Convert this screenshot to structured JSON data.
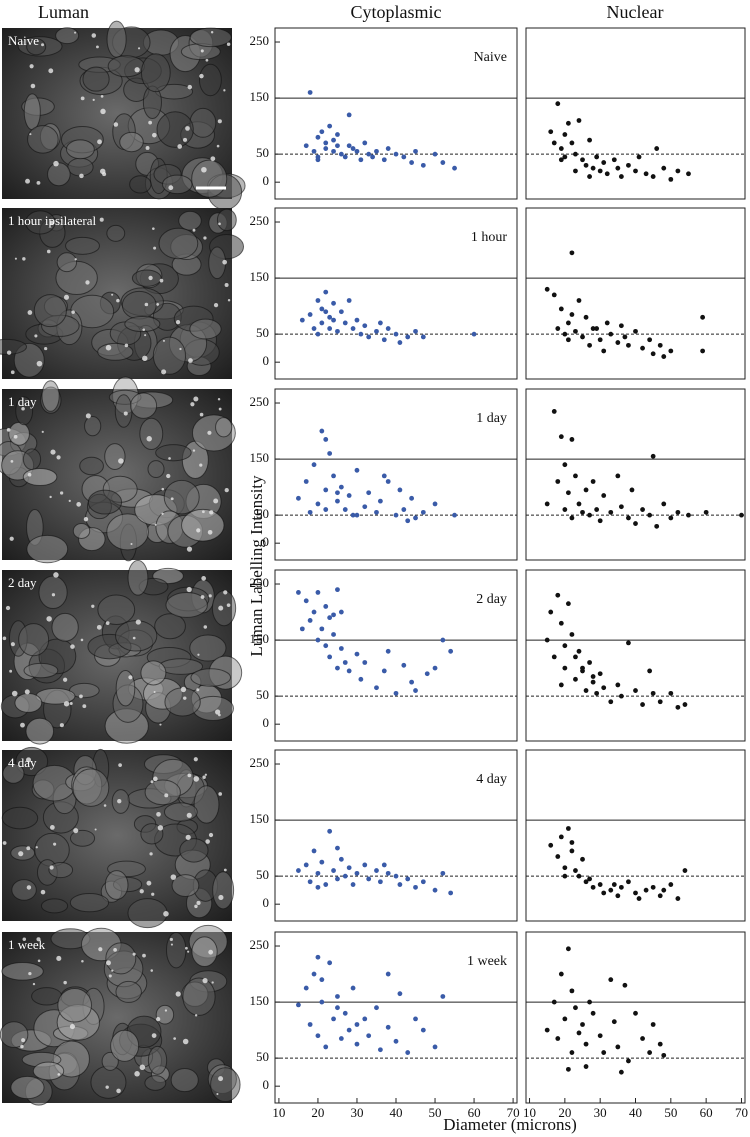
{
  "column_titles": [
    "Luman",
    "Cytoplasmic",
    "Nuclear"
  ],
  "image_labels": [
    "Naive",
    "1 hour ipsilateral",
    "1 day",
    "2 day",
    "4 day",
    "1 week"
  ],
  "y_label": "Luman Labelling Intensity",
  "x_label": "Diameter (microns)",
  "chart_data": [
    {
      "type": "scatter",
      "annotation": "Naive",
      "color": "#3a5ba8",
      "xlim": [
        9,
        71
      ],
      "ylim": [
        -30,
        275
      ],
      "yticks": [
        0,
        50,
        150,
        250
      ],
      "reference_lines": [
        {
          "value": 150,
          "style": "solid"
        },
        {
          "value": 50,
          "style": "dashed"
        }
      ],
      "x": [
        17,
        18,
        19,
        20,
        20,
        21,
        22,
        22,
        23,
        24,
        25,
        25,
        26,
        27,
        28,
        29,
        30,
        31,
        32,
        33,
        34,
        35,
        37,
        38,
        40,
        42,
        44,
        45,
        47,
        50,
        52,
        55,
        20,
        24,
        28
      ],
      "values": [
        65,
        160,
        55,
        80,
        45,
        90,
        60,
        70,
        100,
        55,
        65,
        85,
        50,
        45,
        120,
        60,
        55,
        40,
        70,
        50,
        45,
        55,
        40,
        60,
        50,
        45,
        35,
        55,
        30,
        50,
        35,
        25,
        40,
        75,
        65
      ]
    },
    {
      "type": "scatter",
      "color": "#111111",
      "xlim": [
        9,
        71
      ],
      "ylim": [
        -30,
        275
      ],
      "reference_lines": [
        {
          "value": 150,
          "style": "solid"
        },
        {
          "value": 50,
          "style": "dashed"
        }
      ],
      "x": [
        16,
        17,
        18,
        19,
        20,
        20,
        21,
        22,
        23,
        24,
        25,
        26,
        27,
        28,
        29,
        30,
        31,
        32,
        34,
        35,
        36,
        38,
        40,
        41,
        43,
        45,
        46,
        48,
        50,
        52,
        55,
        19,
        23,
        27
      ],
      "values": [
        90,
        70,
        140,
        60,
        85,
        45,
        105,
        70,
        50,
        110,
        40,
        30,
        75,
        25,
        45,
        20,
        35,
        15,
        40,
        25,
        10,
        30,
        20,
        45,
        15,
        10,
        60,
        25,
        5,
        20,
        15,
        40,
        20,
        10
      ]
    },
    {
      "type": "scatter",
      "annotation": "1 hour",
      "color": "#3a5ba8",
      "xlim": [
        9,
        71
      ],
      "ylim": [
        -30,
        275
      ],
      "yticks": [
        0,
        50,
        150,
        250
      ],
      "reference_lines": [
        {
          "value": 150,
          "style": "solid"
        },
        {
          "value": 50,
          "style": "dashed"
        }
      ],
      "x": [
        16,
        18,
        19,
        20,
        21,
        21,
        22,
        23,
        23,
        24,
        25,
        26,
        27,
        28,
        29,
        30,
        31,
        32,
        33,
        35,
        36,
        37,
        38,
        40,
        41,
        43,
        45,
        47,
        20,
        24,
        60,
        22
      ],
      "values": [
        75,
        85,
        60,
        110,
        95,
        70,
        125,
        80,
        60,
        105,
        55,
        90,
        70,
        110,
        60,
        75,
        50,
        65,
        45,
        55,
        70,
        40,
        60,
        50,
        35,
        45,
        55,
        45,
        50,
        75,
        50,
        90
      ]
    },
    {
      "type": "scatter",
      "color": "#111111",
      "xlim": [
        9,
        71
      ],
      "ylim": [
        -30,
        275
      ],
      "reference_lines": [
        {
          "value": 150,
          "style": "solid"
        },
        {
          "value": 50,
          "style": "dashed"
        }
      ],
      "x": [
        15,
        17,
        18,
        19,
        20,
        21,
        21,
        22,
        23,
        24,
        25,
        26,
        27,
        28,
        30,
        31,
        32,
        33,
        35,
        36,
        38,
        40,
        42,
        44,
        45,
        47,
        48,
        50,
        59,
        59,
        22,
        29,
        37
      ],
      "values": [
        130,
        120,
        60,
        95,
        50,
        70,
        40,
        195,
        55,
        110,
        45,
        80,
        30,
        60,
        40,
        20,
        70,
        50,
        35,
        65,
        30,
        55,
        25,
        40,
        15,
        30,
        10,
        20,
        80,
        20,
        85,
        60,
        45
      ]
    },
    {
      "type": "scatter",
      "annotation": "1 day",
      "color": "#3a5ba8",
      "xlim": [
        9,
        71
      ],
      "ylim": [
        -30,
        275
      ],
      "yticks": [
        0,
        50,
        150,
        250
      ],
      "reference_lines": [
        {
          "value": 150,
          "style": "solid"
        },
        {
          "value": 50,
          "style": "dashed"
        }
      ],
      "x": [
        15,
        17,
        18,
        19,
        20,
        21,
        22,
        22,
        23,
        24,
        25,
        26,
        27,
        28,
        29,
        30,
        32,
        33,
        35,
        36,
        38,
        40,
        41,
        42,
        44,
        45,
        47,
        50,
        55,
        22,
        25,
        30,
        37,
        43
      ],
      "values": [
        80,
        110,
        55,
        140,
        70,
        200,
        95,
        60,
        160,
        120,
        75,
        100,
        60,
        85,
        50,
        130,
        65,
        90,
        55,
        75,
        110,
        50,
        95,
        60,
        80,
        45,
        55,
        70,
        50,
        185,
        90,
        50,
        120,
        40
      ]
    },
    {
      "type": "scatter",
      "color": "#111111",
      "xlim": [
        9,
        71
      ],
      "ylim": [
        -30,
        275
      ],
      "reference_lines": [
        {
          "value": 150,
          "style": "solid"
        },
        {
          "value": 50,
          "style": "dashed"
        }
      ],
      "x": [
        15,
        17,
        18,
        19,
        20,
        20,
        21,
        22,
        23,
        24,
        25,
        26,
        27,
        28,
        29,
        30,
        31,
        33,
        35,
        36,
        38,
        39,
        40,
        42,
        44,
        45,
        46,
        48,
        50,
        52,
        55,
        60,
        70,
        22
      ],
      "values": [
        70,
        235,
        110,
        190,
        60,
        140,
        90,
        45,
        120,
        70,
        55,
        95,
        50,
        110,
        60,
        40,
        85,
        55,
        120,
        65,
        45,
        95,
        35,
        60,
        50,
        155,
        30,
        70,
        45,
        55,
        50,
        55,
        50,
        185
      ]
    },
    {
      "type": "scatter",
      "annotation": "2 day",
      "color": "#3a5ba8",
      "xlim": [
        9,
        71
      ],
      "ylim": [
        -30,
        275
      ],
      "yticks": [
        0,
        50,
        150,
        250
      ],
      "reference_lines": [
        {
          "value": 150,
          "style": "solid"
        },
        {
          "value": 50,
          "style": "dashed"
        }
      ],
      "x": [
        15,
        16,
        17,
        18,
        19,
        20,
        20,
        21,
        22,
        22,
        23,
        23,
        24,
        25,
        25,
        26,
        27,
        28,
        30,
        31,
        32,
        35,
        37,
        38,
        40,
        42,
        44,
        45,
        48,
        50,
        52,
        54,
        24,
        26
      ],
      "values": [
        235,
        170,
        220,
        185,
        200,
        150,
        235,
        170,
        210,
        140,
        190,
        120,
        160,
        100,
        240,
        135,
        110,
        95,
        125,
        80,
        110,
        65,
        95,
        130,
        55,
        105,
        75,
        60,
        90,
        100,
        150,
        130,
        195,
        200
      ]
    },
    {
      "type": "scatter",
      "color": "#111111",
      "xlim": [
        9,
        71
      ],
      "ylim": [
        -30,
        275
      ],
      "reference_lines": [
        {
          "value": 150,
          "style": "solid"
        },
        {
          "value": 50,
          "style": "dashed"
        }
      ],
      "x": [
        15,
        16,
        17,
        18,
        19,
        20,
        20,
        21,
        22,
        23,
        23,
        24,
        25,
        26,
        27,
        28,
        29,
        30,
        31,
        33,
        35,
        36,
        38,
        40,
        42,
        44,
        45,
        47,
        50,
        52,
        54,
        19,
        25,
        28
      ],
      "values": [
        150,
        200,
        120,
        230,
        180,
        140,
        100,
        215,
        160,
        120,
        80,
        130,
        95,
        60,
        110,
        75,
        55,
        90,
        65,
        40,
        70,
        50,
        145,
        60,
        35,
        95,
        55,
        40,
        55,
        30,
        35,
        70,
        100,
        85
      ]
    },
    {
      "type": "scatter",
      "annotation": "4 day",
      "color": "#3a5ba8",
      "xlim": [
        9,
        71
      ],
      "ylim": [
        -30,
        275
      ],
      "yticks": [
        0,
        50,
        150,
        250
      ],
      "reference_lines": [
        {
          "value": 150,
          "style": "solid"
        },
        {
          "value": 50,
          "style": "dashed"
        }
      ],
      "x": [
        15,
        17,
        18,
        19,
        20,
        21,
        22,
        23,
        24,
        25,
        26,
        27,
        28,
        29,
        30,
        32,
        33,
        35,
        36,
        38,
        40,
        41,
        43,
        45,
        47,
        50,
        52,
        54,
        20,
        25,
        37
      ],
      "values": [
        60,
        70,
        40,
        95,
        55,
        75,
        35,
        130,
        60,
        45,
        80,
        50,
        65,
        35,
        55,
        70,
        45,
        60,
        40,
        55,
        50,
        35,
        45,
        30,
        40,
        25,
        55,
        20,
        30,
        100,
        70
      ]
    },
    {
      "type": "scatter",
      "color": "#111111",
      "xlim": [
        9,
        71
      ],
      "ylim": [
        -30,
        275
      ],
      "reference_lines": [
        {
          "value": 150,
          "style": "solid"
        },
        {
          "value": 50,
          "style": "dashed"
        }
      ],
      "x": [
        16,
        18,
        19,
        20,
        21,
        22,
        23,
        24,
        25,
        26,
        27,
        28,
        30,
        31,
        33,
        35,
        36,
        38,
        40,
        41,
        43,
        45,
        47,
        48,
        50,
        52,
        54,
        20,
        22,
        34
      ],
      "values": [
        105,
        85,
        120,
        65,
        135,
        95,
        60,
        50,
        80,
        40,
        45,
        30,
        35,
        20,
        25,
        15,
        30,
        40,
        20,
        10,
        25,
        30,
        15,
        25,
        35,
        10,
        60,
        50,
        110,
        35
      ]
    },
    {
      "type": "scatter",
      "annotation": "1 week",
      "color": "#3a5ba8",
      "xlim": [
        9,
        71
      ],
      "ylim": [
        -30,
        275
      ],
      "yticks": [
        0,
        50,
        150,
        250
      ],
      "xticks": [
        10,
        20,
        30,
        40,
        50,
        60,
        70
      ],
      "reference_lines": [
        {
          "value": 150,
          "style": "solid"
        },
        {
          "value": 50,
          "style": "dashed"
        }
      ],
      "x": [
        15,
        17,
        18,
        19,
        20,
        20,
        21,
        22,
        23,
        24,
        25,
        26,
        27,
        28,
        29,
        30,
        32,
        33,
        35,
        36,
        38,
        40,
        41,
        43,
        45,
        47,
        50,
        52,
        21,
        25,
        30,
        38
      ],
      "values": [
        145,
        175,
        110,
        200,
        90,
        230,
        150,
        70,
        220,
        120,
        160,
        85,
        130,
        100,
        175,
        75,
        120,
        90,
        140,
        65,
        105,
        80,
        165,
        60,
        120,
        100,
        70,
        160,
        190,
        140,
        110,
        200
      ]
    },
    {
      "type": "scatter",
      "color": "#111111",
      "xlim": [
        9,
        71
      ],
      "ylim": [
        -30,
        275
      ],
      "xticks": [
        10,
        20,
        30,
        40,
        50,
        60,
        70
      ],
      "reference_lines": [
        {
          "value": 150,
          "style": "solid"
        },
        {
          "value": 50,
          "style": "dashed"
        }
      ],
      "x": [
        15,
        17,
        18,
        19,
        20,
        21,
        22,
        22,
        23,
        24,
        25,
        26,
        27,
        28,
        30,
        31,
        33,
        34,
        35,
        37,
        38,
        40,
        42,
        44,
        45,
        47,
        48,
        21,
        26,
        36
      ],
      "values": [
        100,
        150,
        85,
        200,
        120,
        245,
        60,
        170,
        140,
        95,
        110,
        75,
        150,
        130,
        90,
        60,
        190,
        115,
        70,
        180,
        45,
        130,
        85,
        60,
        110,
        75,
        55,
        30,
        35,
        25
      ]
    }
  ]
}
